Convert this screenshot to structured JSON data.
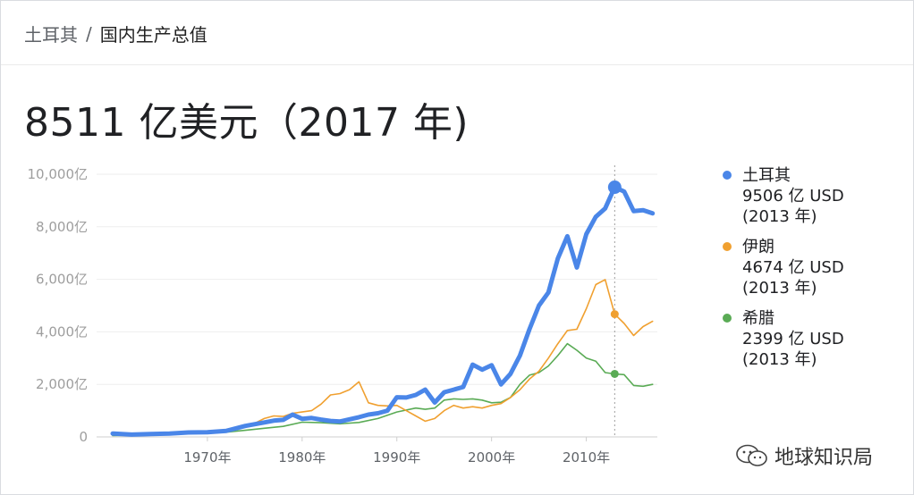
{
  "breadcrumb": {
    "parent": "土耳其",
    "separator": "/",
    "current": "国内生产总值"
  },
  "headline": "8511 亿美元（2017 年)",
  "legend": [
    {
      "name": "土耳其",
      "value": "9506 亿 USD",
      "year": "(2013 年)",
      "color": "#4a86e8"
    },
    {
      "name": "伊朗",
      "value": "4674 亿 USD",
      "year": "(2013 年)",
      "color": "#f0a030"
    },
    {
      "name": "希腊",
      "value": "2399 亿 USD",
      "year": "(2013 年)",
      "color": "#5aab55"
    }
  ],
  "watermark": {
    "text": "地球知识局",
    "icon": "wechat-icon"
  },
  "chart_data": {
    "type": "line",
    "ylim": [
      0,
      10000
    ],
    "yticks": [
      0,
      2000,
      4000,
      6000,
      8000,
      10000
    ],
    "ytick_labels": [
      "0",
      "2,000亿",
      "4,000亿",
      "6,000亿",
      "8,000亿",
      "10,000亿"
    ],
    "xlim": [
      1958.3,
      2017.5
    ],
    "xticks": [
      1970,
      1980,
      1990,
      2000,
      2010
    ],
    "xtick_labels": [
      "1970年",
      "1980年",
      "1990年",
      "2000年",
      "2010年"
    ],
    "highlight_x": 2013,
    "series": [
      {
        "name": "土耳其",
        "color": "#4a86e8",
        "x": [
          1960,
          1962,
          1964,
          1966,
          1968,
          1970,
          1972,
          1974,
          1976,
          1977,
          1978,
          1979,
          1980,
          1981,
          1982,
          1983,
          1984,
          1985,
          1986,
          1987,
          1988,
          1989,
          1990,
          1991,
          1992,
          1993,
          1994,
          1995,
          1996,
          1997,
          1998,
          1999,
          2000,
          2001,
          2002,
          2003,
          2004,
          2005,
          2006,
          2007,
          2008,
          2009,
          2010,
          2011,
          2012,
          2013,
          2014,
          2015,
          2016,
          2017
        ],
        "values": [
          130,
          90,
          110,
          130,
          170,
          180,
          230,
          420,
          550,
          620,
          650,
          850,
          690,
          720,
          660,
          610,
          590,
          670,
          750,
          850,
          900,
          1000,
          1510,
          1500,
          1600,
          1800,
          1310,
          1700,
          1800,
          1900,
          2750,
          2560,
          2730,
          2000,
          2400,
          3100,
          4100,
          5000,
          5500,
          6800,
          7640,
          6450,
          7720,
          8380,
          8700,
          9506,
          9340,
          8600,
          8630,
          8511
        ]
      },
      {
        "name": "伊朗",
        "color": "#f0a030",
        "x": [
          1960,
          1962,
          1964,
          1966,
          1968,
          1970,
          1972,
          1974,
          1975,
          1976,
          1977,
          1978,
          1979,
          1980,
          1981,
          1982,
          1983,
          1984,
          1985,
          1986,
          1987,
          1988,
          1989,
          1990,
          1991,
          1992,
          1993,
          1994,
          1995,
          1996,
          1997,
          1998,
          1999,
          2000,
          2001,
          2002,
          2003,
          2004,
          2005,
          2006,
          2007,
          2008,
          2009,
          2010,
          2011,
          2012,
          2013,
          2014,
          2015,
          2016,
          2017
        ],
        "values": [
          100,
          110,
          120,
          140,
          150,
          160,
          230,
          460,
          520,
          700,
          800,
          780,
          900,
          950,
          1000,
          1250,
          1600,
          1650,
          1800,
          2100,
          1300,
          1200,
          1180,
          1200,
          1000,
          800,
          600,
          700,
          1000,
          1200,
          1100,
          1150,
          1100,
          1200,
          1270,
          1500,
          1800,
          2200,
          2500,
          3000,
          3550,
          4050,
          4100,
          4880,
          5800,
          5990,
          4674,
          4320,
          3860,
          4200,
          4400
        ]
      },
      {
        "name": "希腊",
        "color": "#5aab55",
        "x": [
          1960,
          1962,
          1964,
          1966,
          1968,
          1970,
          1972,
          1974,
          1976,
          1978,
          1980,
          1982,
          1984,
          1986,
          1988,
          1990,
          1992,
          1993,
          1994,
          1995,
          1996,
          1997,
          1998,
          1999,
          2000,
          2001,
          2002,
          2003,
          2004,
          2005,
          2006,
          2007,
          2008,
          2009,
          2010,
          2011,
          2012,
          2013,
          2014,
          2015,
          2016,
          2017
        ],
        "values": [
          50,
          60,
          80,
          100,
          130,
          150,
          180,
          250,
          330,
          400,
          560,
          540,
          500,
          550,
          700,
          950,
          1100,
          1050,
          1100,
          1400,
          1450,
          1430,
          1450,
          1400,
          1300,
          1320,
          1500,
          2000,
          2350,
          2450,
          2700,
          3100,
          3550,
          3300,
          3000,
          2880,
          2450,
          2399,
          2370,
          1960,
          1930,
          2000
        ]
      }
    ]
  }
}
